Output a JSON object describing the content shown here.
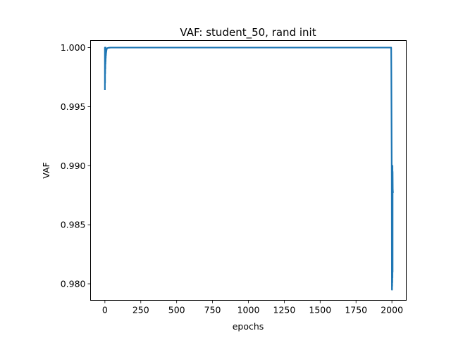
{
  "chart_data": {
    "type": "line",
    "title": "VAF: student_50, rand init",
    "xlabel": "epochs",
    "ylabel": "VAF",
    "xlim": [
      -100,
      2100
    ],
    "ylim": [
      0.9786,
      1.0006
    ],
    "x_ticks": [
      0,
      250,
      500,
      750,
      1000,
      1250,
      1500,
      1750,
      2000
    ],
    "x_tick_labels": [
      "0",
      "250",
      "500",
      "750",
      "1000",
      "1250",
      "1500",
      "1750",
      "2000"
    ],
    "y_ticks": [
      0.98,
      0.985,
      0.99,
      0.995,
      1.0
    ],
    "y_tick_labels": [
      "0.980",
      "0.985",
      "0.990",
      "0.995",
      "1.000"
    ],
    "grid": false,
    "line_color": "#1f77b4",
    "series": [
      {
        "x": [
          0,
          0,
          1,
          1,
          2,
          2,
          3,
          3,
          4,
          4,
          5,
          5,
          6,
          6,
          7,
          8,
          10,
          12,
          15,
          20,
          30,
          40,
          60,
          100,
          200,
          500,
          1000,
          1500,
          1990,
          1995,
          1996,
          1997,
          1998,
          1999,
          2000,
          2000,
          2001,
          2001,
          2002,
          2002,
          2003,
          2003,
          2004,
          2004,
          2005,
          2005,
          2006,
          2007,
          2008
        ],
        "y": [
          0.9964,
          1.0,
          0.997,
          1.0,
          0.9978,
          1.0,
          0.9982,
          1.0,
          0.9986,
          1.0,
          0.9988,
          1.0,
          0.9991,
          1.0,
          0.9993,
          0.9995,
          0.9997,
          0.99985,
          0.99992,
          0.99997,
          0.99999,
          1.0,
          1.0,
          1.0,
          1.0,
          1.0,
          1.0,
          1.0,
          1.0,
          1.0,
          0.998,
          0.995,
          0.992,
          0.989,
          0.9795,
          0.988,
          0.9795,
          0.9895,
          0.9798,
          0.9898,
          0.9801,
          0.9899,
          0.9805,
          0.99,
          0.981,
          0.9895,
          0.988,
          0.9878,
          0.9877
        ]
      }
    ]
  }
}
